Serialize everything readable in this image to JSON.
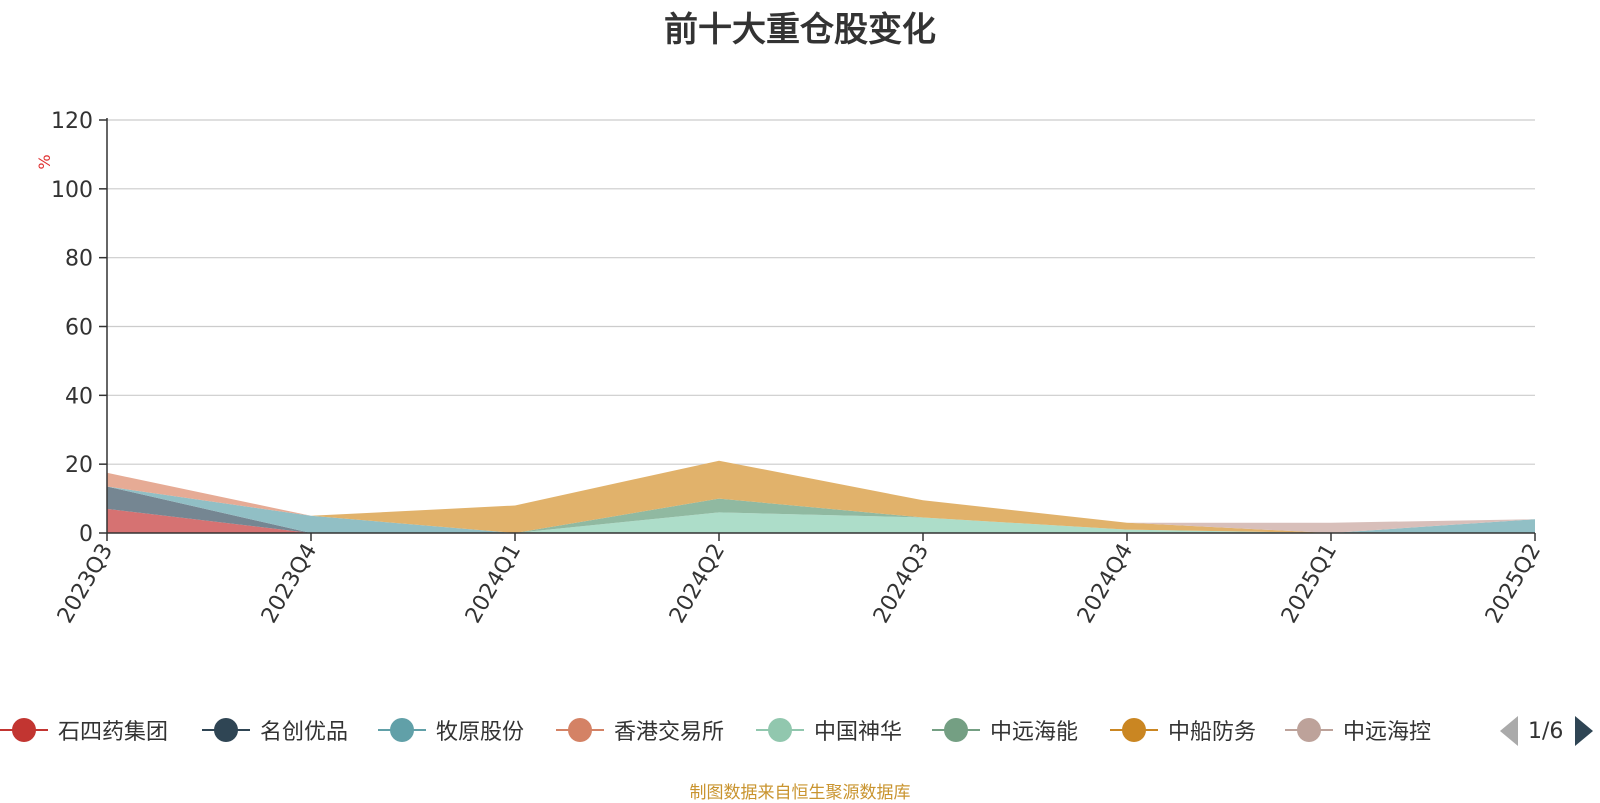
{
  "chart_data": {
    "type": "area",
    "title": "前十大重仓股变化",
    "ylabel": "%",
    "ylim": [
      0,
      120
    ],
    "yticks": [
      0,
      20,
      40,
      60,
      80,
      100,
      120
    ],
    "grid": true,
    "legend_position": "bottom",
    "categories": [
      "2023Q3",
      "2023Q4",
      "2024Q1",
      "2024Q2",
      "2024Q3",
      "2024Q4",
      "2025Q1",
      "2025Q2"
    ],
    "series": [
      {
        "name": "石四药集团",
        "color": "#d46a6a",
        "values": [
          7.0,
          0.0,
          0.0,
          0.0,
          0.0,
          0.0,
          0.0,
          0.0
        ]
      },
      {
        "name": "名创优品",
        "color": "#6e7f8c",
        "values": [
          6.5,
          0.0,
          0.0,
          0.0,
          0.0,
          0.0,
          0.0,
          0.0
        ]
      },
      {
        "name": "牧原股份",
        "color": "#8bbcc2",
        "values": [
          0.0,
          5.0,
          0.0,
          0.0,
          0.0,
          0.0,
          0.0,
          4.0
        ]
      },
      {
        "name": "香港交易所",
        "color": "#e5a68f",
        "values": [
          4.0,
          0.0,
          0.0,
          0.0,
          0.0,
          0.0,
          0.0,
          0.0
        ]
      },
      {
        "name": "中国神华",
        "color": "#a9dbc6",
        "values": [
          0.0,
          0.0,
          0.0,
          6.0,
          4.5,
          1.0,
          0.0,
          0.0
        ]
      },
      {
        "name": "中远海能",
        "color": "#8ab59c",
        "values": [
          0.0,
          0.0,
          0.0,
          4.0,
          0.0,
          0.0,
          0.0,
          0.0
        ]
      },
      {
        "name": "中船防务",
        "color": "#dfae63",
        "values": [
          0.0,
          0.0,
          8.0,
          11.0,
          5.0,
          2.0,
          0.0,
          0.0
        ]
      },
      {
        "name": "中远海控",
        "color": "#d6bcb6",
        "values": [
          0.0,
          0.0,
          0.0,
          0.0,
          0.0,
          0.0,
          3.0,
          0.0
        ]
      }
    ]
  },
  "legend": {
    "items": [
      {
        "name": "石四药集团",
        "color": "#c23531"
      },
      {
        "name": "名创优品",
        "color": "#2f4554"
      },
      {
        "name": "牧原股份",
        "color": "#61a0a8"
      },
      {
        "name": "香港交易所",
        "color": "#d48265"
      },
      {
        "name": "中国神华",
        "color": "#91c7ae"
      },
      {
        "name": "中远海能",
        "color": "#749f83"
      },
      {
        "name": "中船防务",
        "color": "#ca8622"
      },
      {
        "name": "中远海控",
        "color": "#bda29a"
      }
    ],
    "page": "1/6"
  },
  "source_note": "制图数据来自恒生聚源数据库"
}
